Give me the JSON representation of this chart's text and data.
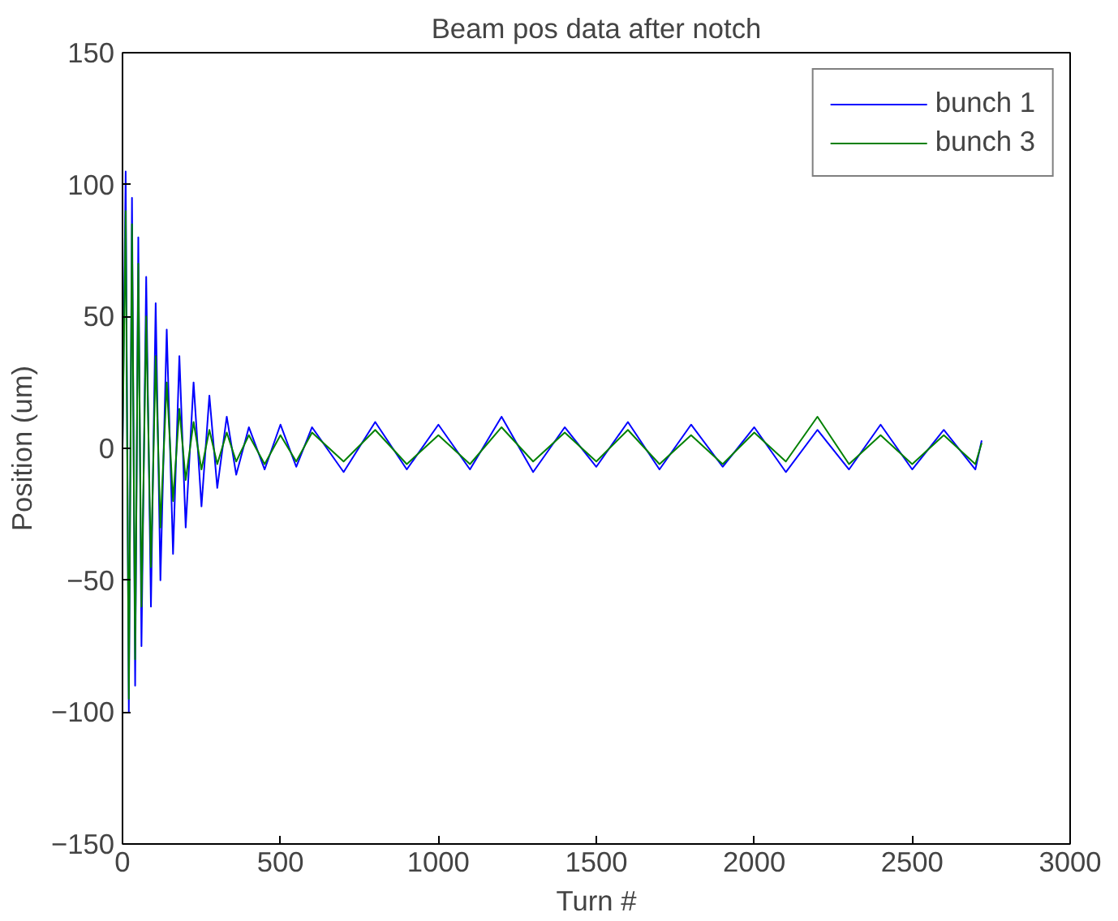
{
  "chart_data": {
    "type": "line",
    "title": "Beam pos data after notch",
    "xlabel": "Turn #",
    "ylabel": "Position (um)",
    "xlim": [
      0,
      3000
    ],
    "xticks": [
      0,
      500,
      1000,
      1500,
      2000,
      2500,
      3000
    ],
    "ylim": [
      -150,
      150
    ],
    "yticks": [
      -150,
      -100,
      -50,
      0,
      50,
      100,
      150
    ],
    "grid": false,
    "legend": "top right",
    "x": [
      0,
      10,
      20,
      30,
      40,
      50,
      60,
      75,
      90,
      105,
      120,
      140,
      160,
      180,
      200,
      225,
      250,
      275,
      300,
      330,
      360,
      400,
      450,
      500,
      550,
      600,
      700,
      800,
      900,
      1000,
      1100,
      1200,
      1300,
      1400,
      1500,
      1600,
      1700,
      1800,
      1900,
      2000,
      2100,
      2200,
      2300,
      2400,
      2500,
      2600,
      2700,
      2720
    ],
    "series": [
      {
        "name": "bunch 1",
        "color": "#0000ff",
        "values": [
          0,
          105,
          -100,
          95,
          -90,
          80,
          -75,
          65,
          -60,
          55,
          -50,
          45,
          -40,
          35,
          -30,
          25,
          -22,
          20,
          -15,
          12,
          -10,
          8,
          -8,
          9,
          -7,
          8,
          -9,
          10,
          -8,
          9,
          -8,
          12,
          -9,
          8,
          -7,
          10,
          -8,
          9,
          -7,
          8,
          -9,
          7,
          -8,
          9,
          -8,
          7,
          -8,
          3
        ]
      },
      {
        "name": "bunch 3",
        "color": "#008000",
        "values": [
          0,
          90,
          -95,
          85,
          -80,
          70,
          -60,
          50,
          -45,
          35,
          -30,
          25,
          -20,
          15,
          -12,
          10,
          -8,
          7,
          -6,
          6,
          -5,
          5,
          -6,
          5,
          -5,
          6,
          -5,
          7,
          -6,
          5,
          -6,
          8,
          -5,
          6,
          -5,
          7,
          -6,
          5,
          -6,
          6,
          -5,
          12,
          -6,
          5,
          -6,
          5,
          -6,
          2
        ]
      }
    ]
  }
}
